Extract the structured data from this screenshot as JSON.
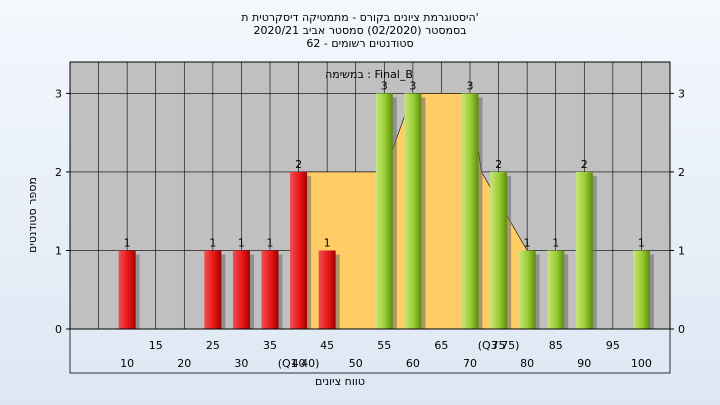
{
  "title_lines": [
    "היסטוגרמת ציונים בקורס - מתמטיקה דיסקרטית ת'",
    "בסמסטר  (02/2020)  סמסטר אביב 2020/21",
    "סטודנטים רשומים - 62"
  ],
  "chart_data": {
    "type": "bar",
    "series_label": "במשימה : Final_B",
    "xlabel": "טווח ציונים",
    "ylabel": "מספר סטודנטים",
    "ylim": [
      0,
      3.4
    ],
    "y_ticks": [
      0,
      1,
      2,
      3
    ],
    "x_range": [
      0,
      105
    ],
    "x_ticks_lower": [
      "10",
      "20",
      "30",
      "40",
      "50",
      "60",
      "70",
      "80",
      "90",
      "100"
    ],
    "x_ticks_upper": [
      "15",
      "25",
      "35",
      "45",
      "55",
      "65",
      "75",
      "85",
      "95"
    ],
    "quartile_labels": [
      {
        "x": 40,
        "label": "(Q1 40)"
      },
      {
        "x": 75,
        "label": "(Q3 75)"
      }
    ],
    "bars": [
      {
        "x": 10,
        "value": 1,
        "group": "below"
      },
      {
        "x": 25,
        "value": 1,
        "group": "below"
      },
      {
        "x": 30,
        "value": 1,
        "group": "below"
      },
      {
        "x": 35,
        "value": 1,
        "group": "below"
      },
      {
        "x": 40,
        "value": 2,
        "group": "below"
      },
      {
        "x": 45,
        "value": 1,
        "group": "below"
      },
      {
        "x": 55,
        "value": 3,
        "group": "above"
      },
      {
        "x": 60,
        "value": 3,
        "group": "above"
      },
      {
        "x": 70,
        "value": 3,
        "group": "above"
      },
      {
        "x": 75,
        "value": 2,
        "group": "above"
      },
      {
        "x": 80,
        "value": 1,
        "group": "above"
      },
      {
        "x": 85,
        "value": 1,
        "group": "above"
      },
      {
        "x": 90,
        "value": 2,
        "group": "above"
      },
      {
        "x": 100,
        "value": 1,
        "group": "above"
      }
    ],
    "area": {
      "x": [
        40,
        55,
        60,
        70,
        72,
        80
      ],
      "y": [
        2,
        2,
        3,
        3,
        2,
        1
      ]
    },
    "colors": {
      "plot_bg": "#c0c0c0",
      "grid": "#000000",
      "area": "#ffcc66",
      "bar_below": "#e02020",
      "bar_above": "#99cc33"
    }
  }
}
